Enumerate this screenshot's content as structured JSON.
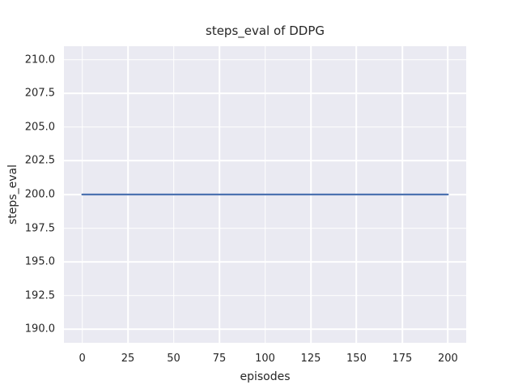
{
  "chart_data": {
    "type": "line",
    "title": "steps_eval of DDPG",
    "xlabel": "episodes",
    "ylabel": "steps_eval",
    "xlim": [
      -10,
      210
    ],
    "ylim": [
      189,
      211
    ],
    "xticks": [
      0,
      25,
      50,
      75,
      100,
      125,
      150,
      175,
      200
    ],
    "xtick_labels": [
      "0",
      "25",
      "50",
      "75",
      "100",
      "125",
      "150",
      "175",
      "200"
    ],
    "yticks": [
      190.0,
      192.5,
      195.0,
      197.5,
      200.0,
      202.5,
      205.0,
      207.5,
      210.0
    ],
    "ytick_labels": [
      "190.0",
      "192.5",
      "195.0",
      "197.5",
      "200.0",
      "202.5",
      "205.0",
      "207.5",
      "210.0"
    ],
    "grid": true,
    "legend": false,
    "series": [
      {
        "name": "steps_eval of DDPG",
        "x": [
          0,
          200
        ],
        "y": [
          200,
          200
        ],
        "note": "constant value 200 for all episodes from 0 to 200"
      }
    ],
    "style": {
      "figure_background": "#ffffff",
      "plot_background": "#eaeaf2",
      "grid_color": "#ffffff",
      "line_color": "#4c72b0",
      "line_width": 2.2,
      "text_color": "#262626"
    }
  }
}
